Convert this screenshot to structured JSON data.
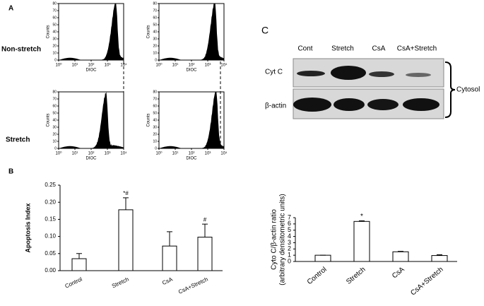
{
  "panel_labels": [
    "A",
    "B",
    "C"
  ],
  "flow_cytometry": {
    "row_labels": [
      "Non-stretch",
      "Stretch"
    ],
    "ylabel": "Counts",
    "xlabel": "DIOC",
    "yticks": [
      0,
      10,
      20,
      30,
      40,
      50,
      60,
      70,
      80
    ],
    "xticks": [
      {
        "value": 0,
        "label": "10⁰"
      },
      {
        "value": 1,
        "label": "10¹"
      },
      {
        "value": 2,
        "label": "10²"
      },
      {
        "value": 3,
        "label": "10³"
      },
      {
        "value": 4,
        "label": "10⁴"
      }
    ]
  },
  "western_blot": {
    "lanes": [
      "Cont",
      "Stretch",
      "CsA",
      "CsA+Stretch"
    ],
    "rows": [
      "Cyt C",
      "β-actin"
    ],
    "fraction": "Cytosol"
  },
  "chart_data": [
    {
      "type": "bar",
      "ylabel": "Apoptosis Index",
      "categories": [
        "Control",
        "Stretch",
        "CsA",
        "CsA+Stretch"
      ],
      "values": [
        0.035,
        0.178,
        0.072,
        0.098
      ],
      "errors": [
        0.015,
        0.035,
        0.042,
        0.038
      ],
      "color": "#ffffff",
      "ylim": [
        0,
        0.25
      ],
      "yticks": [
        {
          "value": 0,
          "label": "0.00"
        },
        {
          "value": 0.05,
          "label": "0.05"
        },
        {
          "value": 0.1,
          "label": "0.10"
        },
        {
          "value": 0.15,
          "label": "0.15"
        },
        {
          "value": 0.2,
          "label": "0.20"
        },
        {
          "value": 0.25,
          "label": "0.25"
        }
      ],
      "annotations": [
        {
          "category": "Stretch",
          "text": "*#"
        },
        {
          "category": "CsA+Stretch",
          "text": "#"
        }
      ]
    },
    {
      "type": "bar",
      "ylabel": [
        "Cyto C/β-actin ratio",
        "(arbitrary densitometric units)"
      ],
      "categories": [
        "Control",
        "Stretch",
        "CsA",
        "CsA+Stretch"
      ],
      "values": [
        1,
        6.4,
        1.55,
        0.95
      ],
      "errors": [
        0,
        0.1,
        0.08,
        0.12
      ],
      "color": "#ffffff",
      "ylim": [
        0,
        7
      ],
      "yticks": [
        0,
        1,
        2,
        3,
        4,
        5,
        6,
        7
      ],
      "annotations": [
        {
          "category": "Stretch",
          "text": "*"
        }
      ]
    }
  ]
}
